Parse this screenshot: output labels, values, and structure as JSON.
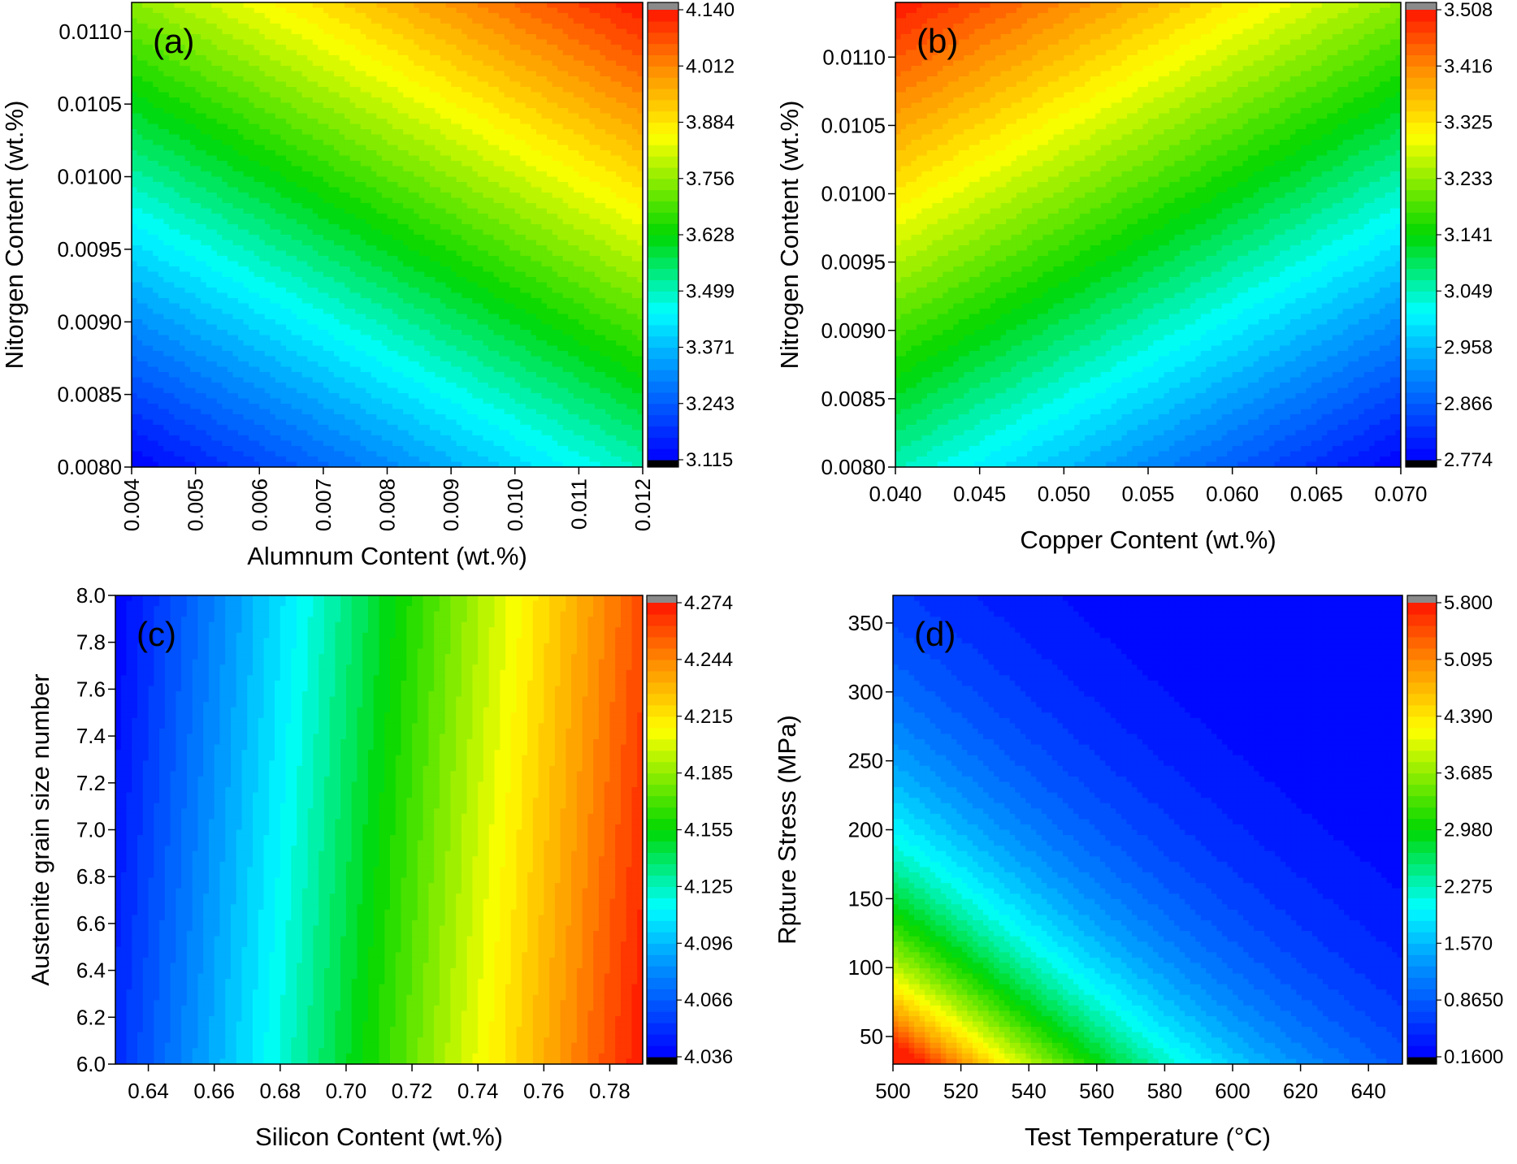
{
  "chart_data": [
    {
      "type": "heatmap",
      "panel_label": "(a)",
      "xlabel": "Alumnum Content (wt.%)",
      "ylabel": "Nitorgen Content (wt.%)",
      "xlim": [
        0.004,
        0.012
      ],
      "ylim": [
        0.008,
        0.0112
      ],
      "x_ticks": [
        0.004,
        0.005,
        0.006,
        0.007,
        0.008,
        0.009,
        0.01,
        0.011,
        0.012
      ],
      "x_tick_labels": [
        "0.004",
        "0.005",
        "0.006",
        "0.007",
        "0.008",
        "0.009",
        "0.010",
        "0.011",
        "0.012"
      ],
      "y_ticks": [
        0.008,
        0.0085,
        0.009,
        0.0095,
        0.01,
        0.0105,
        0.011
      ],
      "y_tick_labels": [
        "0.0080",
        "0.0085",
        "0.0090",
        "0.0095",
        "0.0100",
        "0.0105",
        "0.0110"
      ],
      "x_tick_rotation": "vertical",
      "colorbar": {
        "min": 3.115,
        "max": 4.14,
        "tick_labels": [
          "3.115",
          "3.243",
          "3.371",
          "3.499",
          "3.628",
          "3.756",
          "3.884",
          "4.012",
          "4.140"
        ]
      },
      "field": {
        "kind": "plane",
        "value_min_corner": [
          0.004,
          0.008
        ],
        "value_min": 3.115,
        "value_max_corner": [
          0.012,
          0.0112
        ],
        "value_max": 4.14,
        "x_weight": 0.38,
        "y_weight": 0.62
      }
    },
    {
      "type": "heatmap",
      "panel_label": "(b)",
      "xlabel": "Copper Content (wt.%)",
      "ylabel": "Nitrogen Content (wt.%)",
      "xlim": [
        0.04,
        0.07
      ],
      "ylim": [
        0.008,
        0.0114
      ],
      "x_ticks": [
        0.04,
        0.045,
        0.05,
        0.055,
        0.06,
        0.065,
        0.07
      ],
      "x_tick_labels": [
        "0.040",
        "0.045",
        "0.050",
        "0.055",
        "0.060",
        "0.065",
        "0.070"
      ],
      "y_ticks": [
        0.008,
        0.0085,
        0.009,
        0.0095,
        0.01,
        0.0105,
        0.011
      ],
      "y_tick_labels": [
        "0.0080",
        "0.0085",
        "0.0090",
        "0.0095",
        "0.0100",
        "0.0105",
        "0.0110"
      ],
      "x_tick_rotation": "horizontal",
      "colorbar": {
        "min": 2.774,
        "max": 3.508,
        "tick_labels": [
          "2.774",
          "2.866",
          "2.958",
          "3.049",
          "3.141",
          "3.233",
          "3.325",
          "3.416",
          "3.508"
        ]
      },
      "field": {
        "kind": "plane",
        "value_min_corner": [
          0.07,
          0.008
        ],
        "value_min": 2.774,
        "value_max_corner": [
          0.04,
          0.0114
        ],
        "value_max": 3.508,
        "x_weight": 0.38,
        "y_weight": 0.62
      }
    },
    {
      "type": "heatmap",
      "panel_label": "(c)",
      "xlabel": "Silicon Content (wt.%)",
      "ylabel": "Austenite grain size number",
      "xlim": [
        0.63,
        0.79
      ],
      "ylim": [
        6.0,
        8.0
      ],
      "x_ticks": [
        0.64,
        0.66,
        0.68,
        0.7,
        0.72,
        0.74,
        0.76,
        0.78
      ],
      "x_tick_labels": [
        "0.64",
        "0.66",
        "0.68",
        "0.70",
        "0.72",
        "0.74",
        "0.76",
        "0.78"
      ],
      "y_ticks": [
        6.0,
        6.2,
        6.4,
        6.6,
        6.8,
        7.0,
        7.2,
        7.4,
        7.6,
        7.8,
        8.0
      ],
      "y_tick_labels": [
        "6.0",
        "6.2",
        "6.4",
        "6.6",
        "6.8",
        "7.0",
        "7.2",
        "7.4",
        "7.6",
        "7.8",
        "8.0"
      ],
      "x_tick_rotation": "horizontal",
      "colorbar": {
        "min": 4.036,
        "max": 4.274,
        "tick_labels": [
          "4.036",
          "4.066",
          "4.096",
          "4.125",
          "4.155",
          "4.185",
          "4.215",
          "4.244",
          "4.274"
        ]
      },
      "field": {
        "kind": "plane",
        "value_min_corner": [
          0.63,
          8.0
        ],
        "value_min": 4.036,
        "value_max_corner": [
          0.79,
          6.0
        ],
        "value_max": 4.274,
        "x_weight": 0.94,
        "y_weight": 0.06
      }
    },
    {
      "type": "heatmap",
      "panel_label": "(d)",
      "xlabel": "Test Temperature (°C)",
      "ylabel": "Rpture Stress (MPa)",
      "xlim": [
        500,
        650
      ],
      "ylim": [
        30,
        370
      ],
      "x_ticks": [
        500,
        520,
        540,
        560,
        580,
        600,
        620,
        640
      ],
      "x_tick_labels": [
        "500",
        "520",
        "540",
        "560",
        "580",
        "600",
        "620",
        "640"
      ],
      "y_ticks": [
        50,
        100,
        150,
        200,
        250,
        300,
        350
      ],
      "y_tick_labels": [
        "50",
        "100",
        "150",
        "200",
        "250",
        "300",
        "350"
      ],
      "x_tick_rotation": "horizontal",
      "colorbar": {
        "min": 0.16,
        "max": 5.8,
        "tick_labels": [
          "0.1600",
          "0.8650",
          "1.570",
          "2.275",
          "2.980",
          "3.685",
          "4.390",
          "5.095",
          "5.800"
        ]
      },
      "field": {
        "kind": "decay",
        "value_min": 0.16,
        "value_max": 5.8,
        "value_at_origin": 6.3,
        "note": "high at low temperature and low stress, decaying toward high temperature / high stress"
      }
    }
  ]
}
